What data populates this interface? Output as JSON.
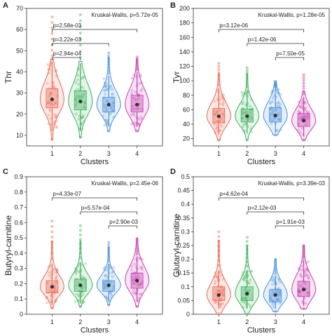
{
  "colors": [
    "#e8664f",
    "#3db05a",
    "#4a90d9",
    "#c43fb0"
  ],
  "chart_data": [
    {
      "type": "violin",
      "panel_label": "A",
      "ylabel": "Thr",
      "xlabel": "Clusters",
      "categories": [
        "1",
        "2",
        "3",
        "4"
      ],
      "ylim": [
        5,
        70
      ],
      "yticks": [
        10,
        20,
        30,
        40,
        50,
        60,
        70
      ],
      "test_label": "Kruskal-Wallis, p=5.72e-05",
      "comparisons": [
        {
          "from": "1",
          "to": "4",
          "label": "p=2.58e-03"
        },
        {
          "from": "1",
          "to": "3",
          "label": "p=3.22e-03"
        },
        {
          "from": "1",
          "to": "2",
          "label": "p=2.94e-04"
        }
      ],
      "series": [
        {
          "category": "1",
          "median": 27,
          "q1": 23,
          "q3": 32,
          "whisker_low": 12,
          "whisker_high": 45,
          "min": 8,
          "max": 66,
          "violin_max": 46
        },
        {
          "category": "2",
          "median": 26,
          "q1": 22,
          "q3": 31,
          "whisker_low": 12,
          "whisker_high": 44,
          "min": 9,
          "max": 67,
          "violin_max": 45
        },
        {
          "category": "3",
          "median": 24.5,
          "q1": 21,
          "q3": 28,
          "whisker_low": 14,
          "whisker_high": 38,
          "min": 12,
          "max": 49,
          "violin_max": 47
        },
        {
          "category": "4",
          "median": 24.5,
          "q1": 21,
          "q3": 29,
          "whisker_low": 14,
          "whisker_high": 40,
          "min": 12,
          "max": 47,
          "violin_max": 46
        }
      ]
    },
    {
      "type": "violin",
      "panel_label": "B",
      "ylabel": "Tyr",
      "xlabel": "Clusters",
      "categories": [
        "1",
        "2",
        "3",
        "4"
      ],
      "ylim": [
        10,
        200
      ],
      "yticks": [
        20,
        40,
        60,
        80,
        100,
        120,
        140,
        160,
        180,
        200
      ],
      "test_label": "Kruskal-Wallis, p=1.28e-05",
      "comparisons": [
        {
          "from": "1",
          "to": "4",
          "label": "p=3.12e-06"
        },
        {
          "from": "2",
          "to": "4",
          "label": "p=1.42e-06"
        },
        {
          "from": "3",
          "to": "4",
          "label": "p=7.50e-05"
        }
      ],
      "series": [
        {
          "category": "1",
          "median": 51,
          "q1": 42,
          "q3": 62,
          "whisker_low": 25,
          "whisker_high": 90,
          "min": 18,
          "max": 124,
          "violin_max": 110
        },
        {
          "category": "2",
          "median": 51,
          "q1": 43,
          "q3": 61,
          "whisker_low": 27,
          "whisker_high": 88,
          "min": 18,
          "max": 118,
          "violin_max": 110
        },
        {
          "category": "3",
          "median": 52,
          "q1": 43,
          "q3": 63,
          "whisker_low": 28,
          "whisker_high": 90,
          "min": 25,
          "max": 98,
          "violin_max": 100
        },
        {
          "category": "4",
          "median": 45,
          "q1": 37,
          "q3": 55,
          "whisker_low": 23,
          "whisker_high": 78,
          "min": 18,
          "max": 108,
          "violin_max": 85
        }
      ]
    },
    {
      "type": "violin",
      "panel_label": "C",
      "ylabel": "Butyryl-carnitine",
      "xlabel": "Clusters",
      "categories": [
        "1",
        "2",
        "3",
        "4"
      ],
      "ylim": [
        0,
        0.9
      ],
      "yticks": [
        0,
        0.1,
        0.2,
        0.3,
        0.4,
        0.5,
        0.6,
        0.7,
        0.8,
        0.9
      ],
      "test_label": "Kruskal-Wallis, p=2.45e-06",
      "comparisons": [
        {
          "from": "1",
          "to": "4",
          "label": "p=4.33e-07"
        },
        {
          "from": "2",
          "to": "4",
          "label": "p=5.57e-04"
        },
        {
          "from": "3",
          "to": "4",
          "label": "p=2.90e-03"
        }
      ],
      "series": [
        {
          "category": "1",
          "median": 0.18,
          "q1": 0.14,
          "q3": 0.22,
          "whisker_low": 0.06,
          "whisker_high": 0.33,
          "min": 0.04,
          "max": 0.61,
          "violin_max": 0.48
        },
        {
          "category": "2",
          "median": 0.19,
          "q1": 0.15,
          "q3": 0.23,
          "whisker_low": 0.07,
          "whisker_high": 0.34,
          "min": 0.05,
          "max": 0.58,
          "violin_max": 0.48
        },
        {
          "category": "3",
          "median": 0.19,
          "q1": 0.15,
          "q3": 0.22,
          "whisker_low": 0.08,
          "whisker_high": 0.33,
          "min": 0.06,
          "max": 0.47,
          "violin_max": 0.44
        },
        {
          "category": "4",
          "median": 0.22,
          "q1": 0.17,
          "q3": 0.27,
          "whisker_low": 0.08,
          "whisker_high": 0.38,
          "min": 0.05,
          "max": 0.49,
          "violin_max": 0.5
        }
      ]
    },
    {
      "type": "violin",
      "panel_label": "D",
      "ylabel": "Glutaryl-carnitine",
      "xlabel": "Clusters",
      "categories": [
        "1",
        "2",
        "3",
        "4"
      ],
      "ylim": [
        0,
        0.5
      ],
      "yticks": [
        0,
        0.05,
        0.1,
        0.15,
        0.2,
        0.25,
        0.3,
        0.35,
        0.4,
        0.45,
        0.5
      ],
      "test_label": "Kruskal-Wallis, p=3.39e-03",
      "comparisons": [
        {
          "from": "1",
          "to": "4",
          "label": "p=4.62e-04"
        },
        {
          "from": "2",
          "to": "4",
          "label": "p=2.12e-03"
        },
        {
          "from": "3",
          "to": "4",
          "label": "p=1.91e-03"
        }
      ],
      "series": [
        {
          "category": "1",
          "median": 0.07,
          "q1": 0.05,
          "q3": 0.1,
          "whisker_low": 0.02,
          "whisker_high": 0.16,
          "min": 0.0,
          "max": 0.3,
          "violin_max": 0.27
        },
        {
          "category": "2",
          "median": 0.075,
          "q1": 0.05,
          "q3": 0.1,
          "whisker_low": 0.02,
          "whisker_high": 0.16,
          "min": 0.0,
          "max": 0.28,
          "violin_max": 0.25
        },
        {
          "category": "3",
          "median": 0.07,
          "q1": 0.045,
          "q3": 0.09,
          "whisker_low": 0.02,
          "whisker_high": 0.14,
          "min": 0.01,
          "max": 0.2,
          "violin_max": 0.2
        },
        {
          "category": "4",
          "median": 0.09,
          "q1": 0.065,
          "q3": 0.12,
          "whisker_low": 0.03,
          "whisker_high": 0.2,
          "min": 0.02,
          "max": 0.25,
          "violin_max": 0.25
        }
      ]
    }
  ]
}
